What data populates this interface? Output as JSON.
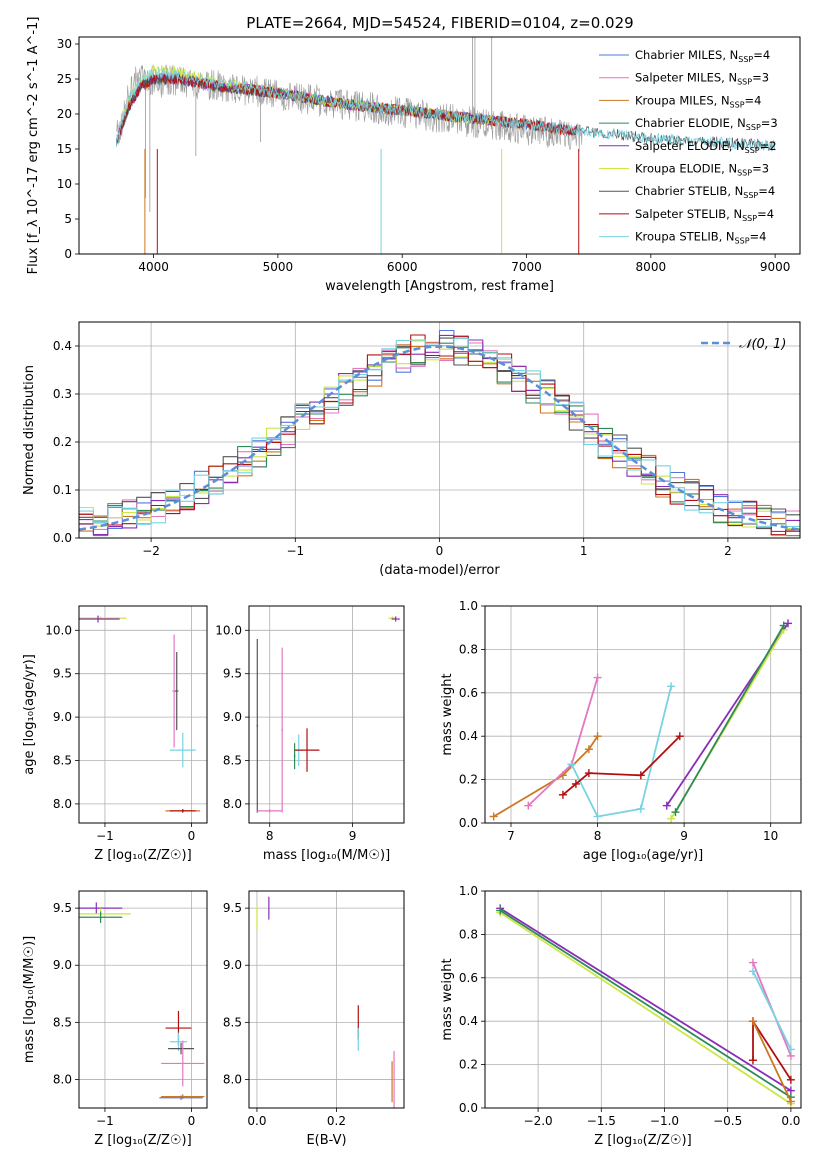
{
  "title": "PLATE=2664, MJD=54524, FIBERID=0104, z=0.029",
  "colors": {
    "Chabrier MILES": "#5577dd",
    "Salpeter MILES": "#e377c2",
    "Kroupa MILES": "#cc7722",
    "Chabrier ELODIE": "#2e8b57",
    "Salpeter ELODIE": "#8b2cb8",
    "Kroupa ELODIE": "#cbe645",
    "Chabrier STELIB": "#555555",
    "Salpeter STELIB": "#b01010",
    "Kroupa STELIB": "#77d3e2",
    "normal": "#5b8fd9"
  },
  "chart_data": [
    {
      "type": "line",
      "id": "spectrum",
      "xlabel": "wavelength [Angstrom, rest frame]",
      "ylabel": "Flux [f_λ 10^-17 erg cm^-2 s^-1 A^-1]",
      "xlim": [
        3400,
        9200
      ],
      "ylim": [
        0,
        31
      ],
      "xticks": [
        4000,
        5000,
        6000,
        7000,
        8000,
        9000
      ],
      "yticks": [
        0,
        5,
        10,
        15,
        20,
        25,
        30
      ],
      "grid": false,
      "legend": "top-right",
      "data_line": {
        "name": "data",
        "color": "#999999",
        "x": [
          3700,
          3760,
          3830,
          3900,
          3970,
          4050,
          4150,
          4300,
          4500,
          4700,
          4900,
          5100,
          5300,
          5500,
          5700,
          5900,
          6100,
          6300,
          6500,
          6700,
          6900,
          7100,
          7300,
          7450
        ],
        "y": [
          16.5,
          20,
          24,
          26,
          25,
          24.5,
          25,
          24.5,
          24,
          23.5,
          23,
          22.5,
          22,
          21.5,
          21,
          20.5,
          20,
          19.5,
          19,
          18.5,
          18,
          17.5,
          17,
          16.5
        ]
      },
      "series": [
        {
          "name": "Chabrier MILES",
          "nssp": "4",
          "x": [
            3700,
            3800,
            3900,
            4000,
            4200,
            4500,
            5000,
            5500,
            6000,
            6500,
            7000,
            7400
          ],
          "y": [
            16,
            21,
            24,
            25,
            25,
            24,
            23,
            21.5,
            20.5,
            19.5,
            18.5,
            17.5
          ]
        },
        {
          "name": "Salpeter MILES",
          "nssp": "3",
          "x": [
            3700,
            3800,
            3900,
            4000,
            4200,
            4500,
            5000,
            5500,
            6000,
            6500,
            7000,
            7400
          ],
          "y": [
            16,
            21,
            24,
            25,
            25,
            24,
            23,
            21.5,
            20.5,
            19.5,
            18.5,
            17.5
          ]
        },
        {
          "name": "Kroupa MILES",
          "nssp": "4",
          "x": [
            3700,
            3800,
            3900,
            4000,
            4200,
            4500,
            5000,
            5500,
            6000,
            6500,
            7000,
            7400
          ],
          "y": [
            16,
            21,
            24,
            25,
            25,
            24,
            23,
            21.5,
            20.5,
            19.5,
            18.5,
            17.5
          ]
        },
        {
          "name": "Chabrier ELODIE",
          "nssp": "3",
          "x": [
            3700,
            3800,
            3900,
            4000,
            4200,
            4500,
            5000,
            5500,
            6000,
            6500,
            6800
          ],
          "y": [
            16,
            21,
            24,
            25,
            25,
            24,
            23,
            21.5,
            20.5,
            19.5,
            19
          ]
        },
        {
          "name": "Salpeter ELODIE",
          "nssp": "2",
          "x": [
            3700,
            3800,
            3900,
            4000,
            4200,
            4500,
            5000,
            5500,
            6000,
            6500,
            6800
          ],
          "y": [
            16,
            21,
            24,
            25,
            25,
            24,
            23,
            21.5,
            20.5,
            19.5,
            19
          ]
        },
        {
          "name": "Kroupa ELODIE",
          "nssp": "3",
          "x": [
            3700,
            3800,
            3900,
            4000,
            4200,
            4500,
            5000,
            5500,
            6000,
            6500,
            6800
          ],
          "y": [
            16,
            22,
            25,
            26.5,
            26,
            24.5,
            23,
            21.5,
            20.5,
            19.5,
            19
          ]
        },
        {
          "name": "Chabrier STELIB",
          "nssp": "4",
          "x": [
            3700,
            3800,
            3900,
            4000,
            4200,
            4500,
            5000,
            5500,
            6000,
            6500,
            7000,
            7500,
            8000,
            8500,
            9000
          ],
          "y": [
            16,
            21,
            24,
            25,
            25,
            24,
            23,
            21.5,
            20.5,
            19.5,
            18.5,
            17.5,
            16.5,
            16,
            15.5
          ]
        },
        {
          "name": "Salpeter STELIB",
          "nssp": "4",
          "x": [
            3700,
            3800,
            3900,
            4000,
            4200,
            4500,
            5000,
            5500,
            6000,
            6500,
            7000,
            7400
          ],
          "y": [
            16,
            21,
            24,
            25,
            25,
            24,
            23,
            21.5,
            20.5,
            19.5,
            18.5,
            17.5
          ]
        },
        {
          "name": "Kroupa STELIB",
          "nssp": "4",
          "x": [
            3700,
            3800,
            3900,
            4000,
            4200,
            4500,
            5000,
            5500,
            6000,
            6500,
            7000,
            7500,
            8000,
            8500,
            9000
          ],
          "y": [
            16,
            22,
            25,
            26,
            25.5,
            24.5,
            23,
            21.5,
            20.5,
            19.5,
            18.5,
            17.5,
            16.5,
            16,
            15.5
          ]
        }
      ],
      "legend_entries": [
        {
          "name": "Chabrier MILES",
          "nssp": "4"
        },
        {
          "name": "Salpeter MILES",
          "nssp": "3"
        },
        {
          "name": "Kroupa MILES",
          "nssp": "4"
        },
        {
          "name": "Chabrier ELODIE",
          "nssp": "3"
        },
        {
          "name": "Salpeter ELODIE",
          "nssp": "2"
        },
        {
          "name": "Kroupa ELODIE",
          "nssp": "3"
        },
        {
          "name": "Chabrier STELIB",
          "nssp": "4"
        },
        {
          "name": "Salpeter STELIB",
          "nssp": "4"
        },
        {
          "name": "Kroupa STELIB",
          "nssp": "4"
        }
      ]
    },
    {
      "type": "line",
      "id": "residuals",
      "xlabel": "(data-model)/error",
      "ylabel": "Normed distribution",
      "xlim": [
        -2.5,
        2.5
      ],
      "ylim": [
        0,
        0.45
      ],
      "xticks": [
        -2,
        -1,
        0,
        1,
        2
      ],
      "yticks": [
        0.0,
        0.1,
        0.2,
        0.3,
        0.4
      ],
      "grid": true,
      "legend": "top-right",
      "normal_label": "𝒩(0, 1)",
      "bin_edges": [
        -2.5,
        -2.4,
        -2.3,
        -2.2,
        -2.1,
        -2.0,
        -1.9,
        -1.8,
        -1.7,
        -1.6,
        -1.5,
        -1.4,
        -1.3,
        -1.2,
        -1.1,
        -1.0,
        -0.9,
        -0.8,
        -0.7,
        -0.6,
        -0.5,
        -0.4,
        -0.3,
        -0.2,
        -0.1,
        0.0,
        0.1,
        0.2,
        0.3,
        0.4,
        0.5,
        0.6,
        0.7,
        0.8,
        0.9,
        1.0,
        1.1,
        1.2,
        1.3,
        1.4,
        1.5,
        1.6,
        1.7,
        1.8,
        1.9,
        2.0,
        2.1,
        2.2,
        2.3,
        2.4,
        2.5
      ],
      "hist_base": [
        0.03,
        0.035,
        0.04,
        0.045,
        0.05,
        0.06,
        0.075,
        0.09,
        0.105,
        0.12,
        0.14,
        0.16,
        0.18,
        0.2,
        0.22,
        0.245,
        0.265,
        0.29,
        0.31,
        0.33,
        0.35,
        0.365,
        0.38,
        0.39,
        0.395,
        0.4,
        0.395,
        0.385,
        0.37,
        0.355,
        0.335,
        0.315,
        0.295,
        0.27,
        0.25,
        0.225,
        0.2,
        0.18,
        0.16,
        0.14,
        0.12,
        0.105,
        0.09,
        0.075,
        0.065,
        0.055,
        0.045,
        0.04,
        0.035,
        0.03
      ]
    },
    {
      "type": "scatter",
      "id": "age-vs-Z",
      "xlabel": "Z [log₁₀(Z/Z☉)]",
      "ylabel": "age  [log₁₀(age/yr)]",
      "xlim": [
        -1.3,
        0.18
      ],
      "ylim": [
        7.78,
        10.28
      ],
      "xticks": [
        -1,
        0
      ],
      "yticks": [
        8.0,
        8.5,
        9.0,
        9.5,
        10.0
      ],
      "grid": true,
      "points": [
        {
          "series": "Kroupa ELODIE",
          "x": -1.05,
          "y": 10.14,
          "xerr": 0.3,
          "yerr": 0.02
        },
        {
          "series": "Salpeter ELODIE",
          "x": -1.08,
          "y": 10.13,
          "xerr": 0.25,
          "yerr": 0.04
        },
        {
          "series": "Salpeter MILES",
          "x": -0.2,
          "y": 9.3,
          "xerr": 0.02,
          "yerr": 0.65
        },
        {
          "series": "Chabrier STELIB",
          "x": -0.17,
          "y": 9.3,
          "xerr": 0.02,
          "yerr": 0.45
        },
        {
          "series": "Kroupa STELIB",
          "x": -0.1,
          "y": 8.62,
          "xerr": 0.15,
          "yerr": 0.2
        },
        {
          "series": "Kroupa MILES",
          "x": -0.1,
          "y": 7.92,
          "xerr": 0.2,
          "yerr": 0.02
        },
        {
          "series": "Salpeter STELIB",
          "x": -0.1,
          "y": 7.92,
          "xerr": 0.15,
          "yerr": 0.02
        }
      ]
    },
    {
      "type": "scatter",
      "id": "age-vs-mass",
      "xlabel": "mass [log₁₀(M/M☉)]",
      "ylabel": "",
      "xlim": [
        7.75,
        9.62
      ],
      "ylim": [
        7.78,
        10.28
      ],
      "xticks": [
        8,
        9
      ],
      "yticks": [
        8.0,
        8.5,
        9.0,
        9.5,
        10.0
      ],
      "grid": true,
      "points": [
        {
          "series": "Kroupa ELODIE",
          "x": 9.48,
          "y": 10.14,
          "xerr": 0.05,
          "yerr": 0.02
        },
        {
          "series": "Salpeter ELODIE",
          "x": 9.52,
          "y": 10.13,
          "xerr": 0.05,
          "yerr": 0.03
        },
        {
          "series": "Chabrier STELIB",
          "x": 7.85,
          "y": 8.9,
          "xerr": 0.01,
          "yerr": 1.0
        },
        {
          "series": "Salpeter MILES",
          "x": 8.15,
          "y": 8.85,
          "xerr": 0.01,
          "yerr": 0.95
        },
        {
          "series": "Chabrier ELODIE",
          "x": 8.3,
          "y": 8.55,
          "xerr": 0.01,
          "yerr": 0.15
        },
        {
          "series": "Kroupa STELIB",
          "x": 8.35,
          "y": 8.62,
          "xerr": 0.05,
          "yerr": 0.18
        },
        {
          "series": "Salpeter STELIB",
          "x": 8.45,
          "y": 8.62,
          "xerr": 0.15,
          "yerr": 0.25
        },
        {
          "series": "Salpeter MILES",
          "x": 8.0,
          "y": 7.92,
          "xerr": 0.15,
          "yerr": 0.02
        }
      ]
    },
    {
      "type": "line",
      "id": "weight-vs-age",
      "xlabel": "age  [log₁₀(age/yr)]",
      "ylabel": "mass weight",
      "xlim": [
        6.7,
        10.35
      ],
      "ylim": [
        0,
        1.0
      ],
      "xticks": [
        7,
        8,
        9,
        10
      ],
      "yticks": [
        0.0,
        0.2,
        0.4,
        0.6,
        0.8,
        1.0
      ],
      "grid": true,
      "series": [
        {
          "name": "Kroupa MILES",
          "x": [
            6.8,
            7.6,
            7.9,
            8.0
          ],
          "y": [
            0.03,
            0.22,
            0.34,
            0.4
          ]
        },
        {
          "name": "Salpeter MILES",
          "x": [
            7.2,
            7.7,
            8.0
          ],
          "y": [
            0.08,
            0.27,
            0.67
          ]
        },
        {
          "name": "Kroupa STELIB",
          "x": [
            7.7,
            8.0,
            8.5,
            8.85
          ],
          "y": [
            0.27,
            0.03,
            0.065,
            0.63
          ]
        },
        {
          "name": "Salpeter STELIB",
          "x": [
            7.6,
            7.75,
            7.9,
            8.5,
            8.95
          ],
          "y": [
            0.13,
            0.18,
            0.23,
            0.22,
            0.4
          ]
        },
        {
          "name": "Salpeter ELODIE",
          "x": [
            8.8,
            10.2
          ],
          "y": [
            0.08,
            0.92
          ]
        },
        {
          "name": "Kroupa ELODIE",
          "x": [
            8.85,
            10.15
          ],
          "y": [
            0.02,
            0.89
          ]
        },
        {
          "name": "Chabrier ELODIE",
          "x": [
            8.9,
            10.15
          ],
          "y": [
            0.05,
            0.91
          ]
        }
      ]
    },
    {
      "type": "scatter",
      "id": "mass-vs-Z",
      "xlabel": "Z [log₁₀(Z/Z☉)]",
      "ylabel": "mass [log₁₀(M/M☉)]",
      "xlim": [
        -1.3,
        0.18
      ],
      "ylim": [
        7.75,
        9.65
      ],
      "xticks": [
        -1,
        0
      ],
      "yticks": [
        8.0,
        8.5,
        9.0,
        9.5
      ],
      "grid": true,
      "points": [
        {
          "series": "Salpeter ELODIE",
          "x": -1.1,
          "y": 9.5,
          "xerr": 0.3,
          "yerr": 0.05
        },
        {
          "series": "Kroupa ELODIE",
          "x": -1.05,
          "y": 9.45,
          "xerr": 0.35,
          "yerr": 0.05
        },
        {
          "series": "Chabrier ELODIE",
          "x": -1.05,
          "y": 9.42,
          "xerr": 0.25,
          "yerr": 0.05
        },
        {
          "series": "Salpeter STELIB",
          "x": -0.15,
          "y": 8.45,
          "xerr": 0.15,
          "yerr": 0.15
        },
        {
          "series": "Kroupa STELIB",
          "x": -0.15,
          "y": 8.33,
          "xerr": 0.1,
          "yerr": 0.08
        },
        {
          "series": "Chabrier STELIB",
          "x": -0.12,
          "y": 8.27,
          "xerr": 0.15,
          "yerr": 0.05
        },
        {
          "series": "Salpeter MILES",
          "x": -0.1,
          "y": 8.14,
          "xerr": 0.25,
          "yerr": 0.2
        },
        {
          "series": "Kroupa MILES",
          "x": -0.1,
          "y": 7.85,
          "xerr": 0.25,
          "yerr": 0.02
        },
        {
          "series": "Chabrier MILES",
          "x": -0.12,
          "y": 7.84,
          "xerr": 0.25,
          "yerr": 0.02
        }
      ]
    },
    {
      "type": "scatter",
      "id": "mass-vs-EBV",
      "xlabel": "E(B-V)",
      "ylabel": "",
      "xlim": [
        -0.02,
        0.37
      ],
      "ylim": [
        7.75,
        9.65
      ],
      "xticks": [
        0.0,
        0.2
      ],
      "yticks": [
        8.0,
        8.5,
        9.0,
        9.5
      ],
      "grid": true,
      "points": [
        {
          "series": "Salpeter ELODIE",
          "x": 0.03,
          "y": 9.5,
          "xerr": 0,
          "yerr": 0.1
        },
        {
          "series": "Kroupa ELODIE",
          "x": 0.0,
          "y": 9.42,
          "xerr": 0,
          "yerr": 0.1
        },
        {
          "series": "Salpeter STELIB",
          "x": 0.255,
          "y": 8.5,
          "xerr": 0,
          "yerr": 0.15
        },
        {
          "series": "Kroupa STELIB",
          "x": 0.255,
          "y": 8.35,
          "xerr": 0,
          "yerr": 0.1
        },
        {
          "series": "Salpeter MILES",
          "x": 0.345,
          "y": 8.0,
          "xerr": 0,
          "yerr": 0.25
        },
        {
          "series": "Kroupa MILES",
          "x": 0.34,
          "y": 7.98,
          "xerr": 0,
          "yerr": 0.18
        }
      ]
    },
    {
      "type": "line",
      "id": "weight-vs-Z",
      "xlabel": "Z [log₁₀(Z/Z☉)]",
      "ylabel": "mass weight",
      "xlim": [
        -2.42,
        0.08
      ],
      "ylim": [
        0,
        1.0
      ],
      "xticks": [
        -2.0,
        -1.5,
        -1.0,
        -0.5,
        0.0
      ],
      "yticks": [
        0.0,
        0.2,
        0.4,
        0.6,
        0.8,
        1.0
      ],
      "grid": true,
      "series": [
        {
          "name": "Salpeter ELODIE",
          "x": [
            -2.3,
            0.0
          ],
          "y": [
            0.92,
            0.08
          ]
        },
        {
          "name": "Kroupa ELODIE",
          "x": [
            -2.3,
            0.0
          ],
          "y": [
            0.9,
            0.02
          ]
        },
        {
          "name": "Chabrier ELODIE",
          "x": [
            -2.3,
            0.0
          ],
          "y": [
            0.91,
            0.05
          ]
        },
        {
          "name": "Salpeter MILES",
          "x": [
            -0.3,
            0.0
          ],
          "y": [
            0.67,
            0.24
          ]
        },
        {
          "name": "Kroupa STELIB",
          "x": [
            -0.3,
            0.0
          ],
          "y": [
            0.63,
            0.27
          ]
        },
        {
          "name": "Salpeter STELIB",
          "x": [
            -0.3,
            -0.3,
            0.0
          ],
          "y": [
            0.22,
            0.4,
            0.13
          ]
        },
        {
          "name": "Kroupa MILES",
          "x": [
            -0.3,
            0.0
          ],
          "y": [
            0.4,
            0.03
          ]
        }
      ]
    }
  ]
}
